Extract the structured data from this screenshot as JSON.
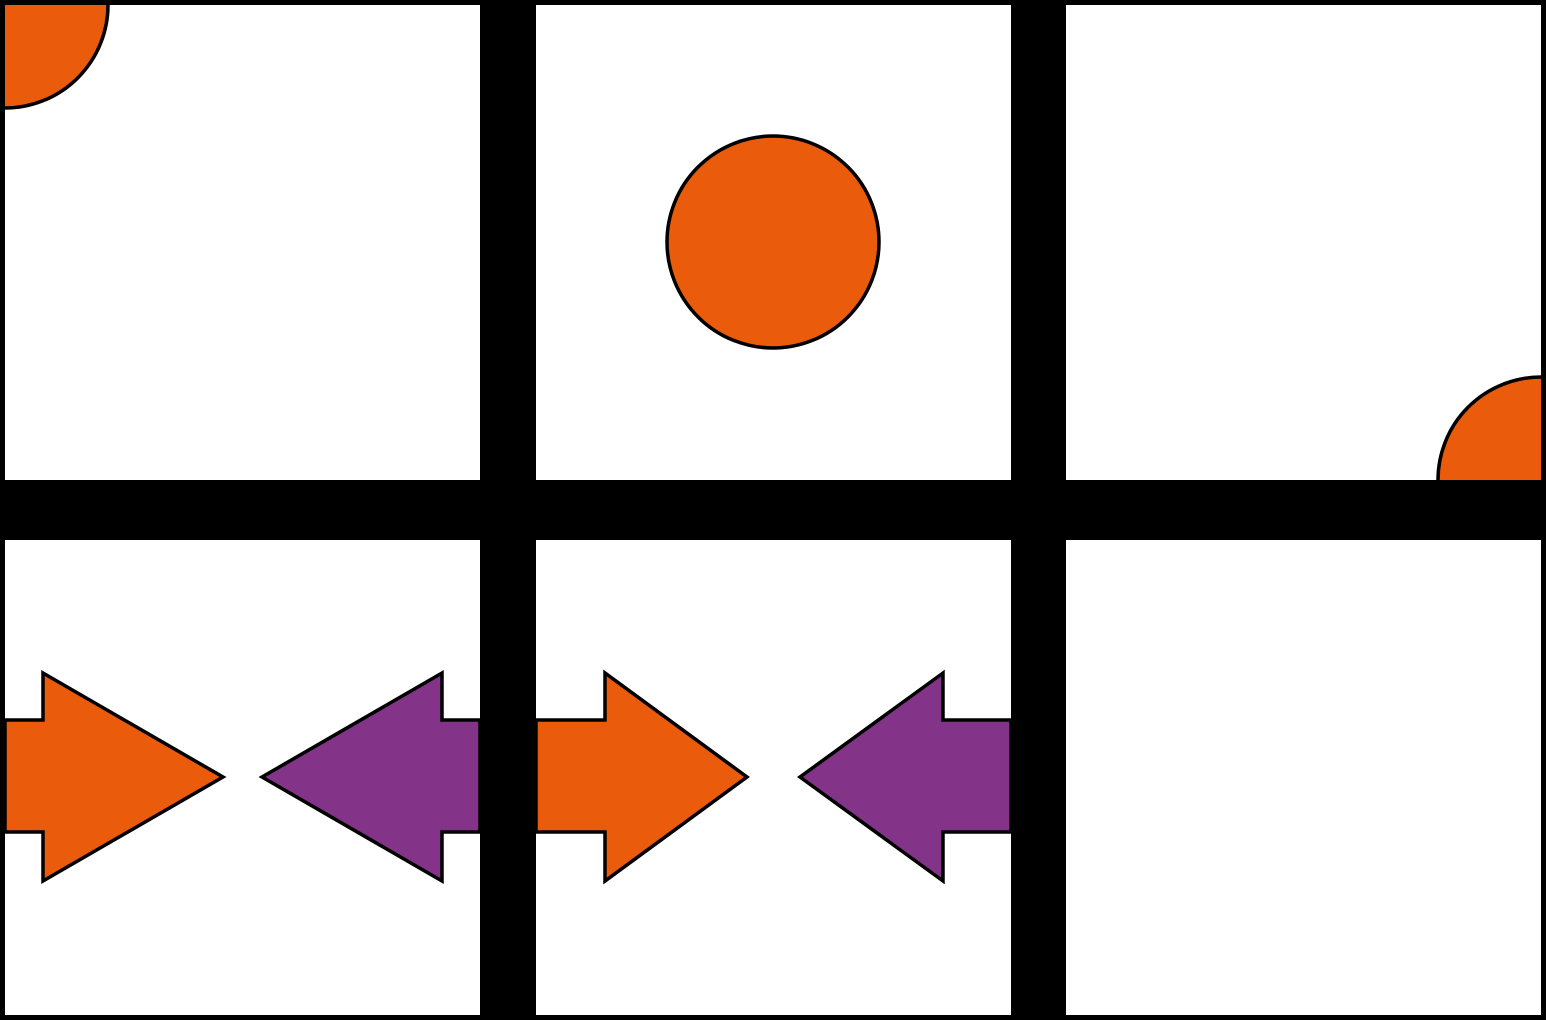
{
  "colors": {
    "background": "#000000",
    "panel": "#ffffff",
    "outline": "#000000",
    "orange": "#ea5b0c",
    "purple": "#833489"
  },
  "grid": {
    "rows": 2,
    "columns": 3
  },
  "panels": [
    {
      "row": 1,
      "column": 1,
      "contents": [
        "quarter-circle-orange"
      ]
    },
    {
      "row": 1,
      "column": 2,
      "contents": [
        "circle-orange"
      ]
    },
    {
      "row": 1,
      "column": 3,
      "contents": [
        "quarter-circle-orange"
      ]
    },
    {
      "row": 2,
      "column": 1,
      "contents": [
        "arrow-right-orange",
        "arrow-left-purple"
      ]
    },
    {
      "row": 2,
      "column": 2,
      "contents": [
        "arrow-right-orange",
        "arrow-left-purple"
      ]
    },
    {
      "row": 2,
      "column": 3,
      "contents": []
    }
  ]
}
